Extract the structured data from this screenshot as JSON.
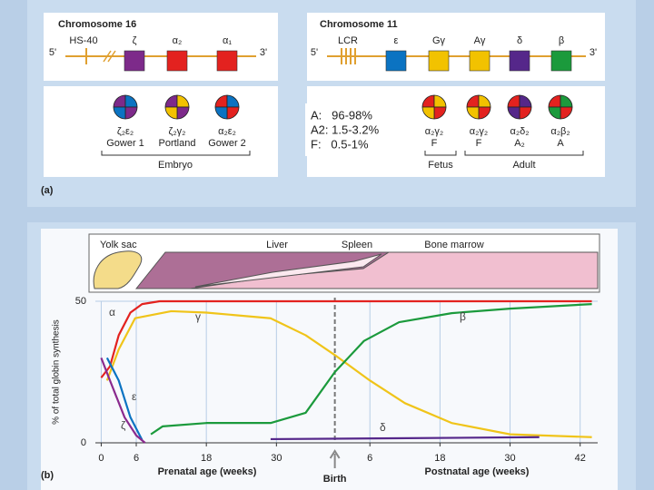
{
  "diagram": {
    "panel_label": "(a)",
    "chromosomes": [
      {
        "title": "Chromosome 16",
        "control": "HS-40",
        "end5": "5'",
        "end3": "3'",
        "genes": [
          {
            "label": "ζ",
            "color": "#7d2a8a"
          },
          {
            "label": "α₂",
            "color": "#e3221f"
          },
          {
            "label": "α₁",
            "color": "#e3221f"
          }
        ]
      },
      {
        "title": "Chromosome 11",
        "control": "LCR",
        "end5": "5'",
        "end3": "3'",
        "genes": [
          {
            "label": "ε",
            "color": "#0b73c2"
          },
          {
            "label": "Gγ",
            "color": "#f2c200"
          },
          {
            "label": "Aγ",
            "color": "#f2c200"
          },
          {
            "label": "δ",
            "color": "#55278a"
          },
          {
            "label": "β",
            "color": "#1b9a3c"
          }
        ]
      }
    ],
    "hemoglobins": [
      {
        "chains": "ζ₂ε₂",
        "name": "Gower 1",
        "colors": [
          "#7d2a8a",
          "#0b73c2"
        ]
      },
      {
        "chains": "ζ₂γ₂",
        "name": "Portland",
        "colors": [
          "#7d2a8a",
          "#f2c200"
        ]
      },
      {
        "chains": "α₂ε₂",
        "name": "Gower 2",
        "colors": [
          "#e3221f",
          "#0b73c2"
        ]
      },
      {
        "chains": "α₂γ₂",
        "name": "F",
        "colors": [
          "#e3221f",
          "#f2c200"
        ]
      },
      {
        "chains": "α₂γ₂",
        "name": "F",
        "colors": [
          "#e3221f",
          "#f2c200"
        ]
      },
      {
        "chains": "α₂δ₂",
        "name": "A₂",
        "colors": [
          "#e3221f",
          "#55278a"
        ]
      },
      {
        "chains": "α₂β₂",
        "name": "A",
        "colors": [
          "#e3221f",
          "#1b9a3c"
        ]
      }
    ],
    "stages": [
      "Embryo",
      "Fetus",
      "Adult"
    ]
  },
  "note": {
    "lines": [
      "A:   96-98%",
      "A2: 1.5-3.2%",
      "F:   0.5-1%"
    ]
  },
  "chart_data": {
    "type": "line",
    "panel_label": "(b)",
    "ylabel": "% of total globin synthesis",
    "xlabel_prenatal": "Prenatal age (weeks)",
    "xlabel_postnatal": "Postnatal age (weeks)",
    "event": {
      "text": "Birth",
      "x": 40
    },
    "tissues": [
      "Yolk sac",
      "Liver",
      "Spleen",
      "Bone marrow"
    ],
    "xlim": [
      -1,
      85
    ],
    "ylim": [
      0,
      50
    ],
    "xticks": [
      0,
      6,
      18,
      30,
      {
        "value": 46,
        "label": "6"
      },
      {
        "value": 58,
        "label": "18"
      },
      {
        "value": 70,
        "label": "30"
      },
      {
        "value": 82,
        "label": "42"
      }
    ],
    "yticks": [
      0,
      50
    ],
    "grid": true,
    "series": [
      {
        "name": "α",
        "color": "#e3221f",
        "x": [
          0,
          1.5,
          3,
          5,
          7,
          10,
          20,
          40,
          60,
          84
        ],
        "values": [
          23,
          27,
          38,
          46,
          49,
          50,
          50,
          50,
          50,
          50
        ]
      },
      {
        "name": "γ",
        "color": "#f0c419",
        "x": [
          1,
          3,
          5.8,
          12,
          18,
          29,
          35,
          40,
          46,
          52,
          60,
          70,
          84
        ],
        "values": [
          22,
          33,
          44,
          46.5,
          46,
          44,
          38,
          31,
          22,
          14,
          7,
          3,
          2
        ]
      },
      {
        "name": "β",
        "color": "#1b9a3c",
        "x": [
          8.5,
          10.5,
          18,
          29,
          35,
          40,
          45,
          51,
          60,
          70,
          84
        ],
        "values": [
          3,
          5.8,
          7,
          7,
          10.6,
          25,
          36,
          42.6,
          45.8,
          47.4,
          49
        ]
      },
      {
        "name": "ε",
        "color": "#0b73c2",
        "x": [
          1,
          3,
          5,
          7
        ],
        "values": [
          30,
          22,
          9,
          1
        ]
      },
      {
        "name": "ζ",
        "color": "#8a2a8e",
        "x": [
          0,
          1.5,
          4,
          6,
          7.5
        ],
        "values": [
          30,
          22,
          9,
          2.6,
          0
        ]
      },
      {
        "name": "δ",
        "color": "#55278a",
        "x": [
          29,
          50,
          75
        ],
        "values": [
          1.3,
          1.6,
          2
        ]
      }
    ]
  }
}
